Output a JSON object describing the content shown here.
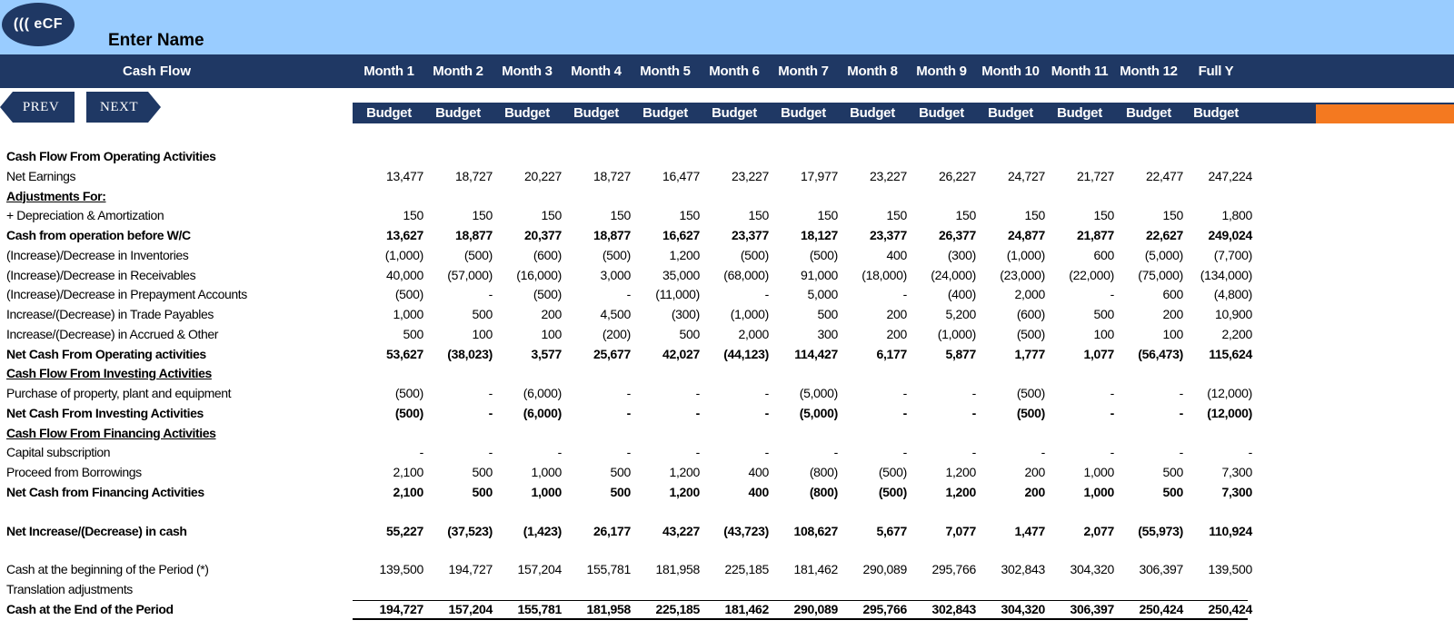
{
  "header": {
    "logo_text": "((( eCF",
    "name": "Enter Name",
    "title": "Cash Flow"
  },
  "nav": {
    "prev": "PREV",
    "next": "NEXT"
  },
  "months": [
    "Month 1",
    "Month 2",
    "Month 3",
    "Month 4",
    "Month 5",
    "Month 6",
    "Month 7",
    "Month 8",
    "Month 9",
    "Month 10",
    "Month 11",
    "Month 12",
    "Full Y"
  ],
  "budget_label": "Budget",
  "colors": {
    "navy": "#1f3864",
    "light_blue": "#99ccff",
    "orange": "#f47920"
  },
  "rows": [
    {
      "label": "Cash Flow From Operating Activities",
      "style": "bold",
      "values": []
    },
    {
      "label": "Net Earnings",
      "style": "normal",
      "values": [
        "13,477",
        "18,727",
        "20,227",
        "18,727",
        "16,477",
        "23,227",
        "17,977",
        "23,227",
        "26,227",
        "24,727",
        "21,727",
        "22,477",
        "247,224"
      ]
    },
    {
      "label": "Adjustments For:",
      "style": "bold-underline",
      "values": []
    },
    {
      "label": "+ Depreciation & Amortization",
      "style": "normal",
      "values": [
        "150",
        "150",
        "150",
        "150",
        "150",
        "150",
        "150",
        "150",
        "150",
        "150",
        "150",
        "150",
        "1,800"
      ]
    },
    {
      "label": "Cash from operation before W/C",
      "style": "bold",
      "values": [
        "13,627",
        "18,877",
        "20,377",
        "18,877",
        "16,627",
        "23,377",
        "18,127",
        "23,377",
        "26,377",
        "24,877",
        "21,877",
        "22,627",
        "249,024"
      ]
    },
    {
      "label": "(Increase)/Decrease in Inventories",
      "style": "normal",
      "values": [
        "(1,000)",
        "(500)",
        "(600)",
        "(500)",
        "1,200",
        "(500)",
        "(500)",
        "400",
        "(300)",
        "(1,000)",
        "600",
        "(5,000)",
        "(7,700)"
      ]
    },
    {
      "label": "(Increase)/Decrease in Receivables",
      "style": "normal",
      "values": [
        "40,000",
        "(57,000)",
        "(16,000)",
        "3,000",
        "35,000",
        "(68,000)",
        "91,000",
        "(18,000)",
        "(24,000)",
        "(23,000)",
        "(22,000)",
        "(75,000)",
        "(134,000)"
      ]
    },
    {
      "label": "(Increase)/Decrease in Prepayment Accounts",
      "style": "normal",
      "values": [
        "(500)",
        "-",
        "(500)",
        "-",
        "(11,000)",
        "-",
        "5,000",
        "-",
        "(400)",
        "2,000",
        "-",
        "600",
        "(4,800)"
      ]
    },
    {
      "label": "Increase/(Decrease) in Trade Payables",
      "style": "normal",
      "values": [
        "1,000",
        "500",
        "200",
        "4,500",
        "(300)",
        "(1,000)",
        "500",
        "200",
        "5,200",
        "(600)",
        "500",
        "200",
        "10,900"
      ]
    },
    {
      "label": "Increase/(Decrease) in Accrued & Other",
      "style": "normal",
      "values": [
        "500",
        "100",
        "100",
        "(200)",
        "500",
        "2,000",
        "300",
        "200",
        "(1,000)",
        "(500)",
        "100",
        "100",
        "2,200"
      ]
    },
    {
      "label": "Net Cash From Operating activities",
      "style": "bold",
      "values": [
        "53,627",
        "(38,023)",
        "3,577",
        "25,677",
        "42,027",
        "(44,123)",
        "114,427",
        "6,177",
        "5,877",
        "1,777",
        "1,077",
        "(56,473)",
        "115,624"
      ]
    },
    {
      "label": "Cash Flow From Investing Activities",
      "style": "bold-underline",
      "values": []
    },
    {
      "label": "Purchase of property, plant and equipment",
      "style": "normal",
      "values": [
        "(500)",
        "-",
        "(6,000)",
        "-",
        "-",
        "-",
        "(5,000)",
        "-",
        "-",
        "(500)",
        "-",
        "-",
        "(12,000)"
      ]
    },
    {
      "label": "Net Cash From Investing Activities",
      "style": "bold",
      "values": [
        "(500)",
        "-",
        "(6,000)",
        "-",
        "-",
        "-",
        "(5,000)",
        "-",
        "-",
        "(500)",
        "-",
        "-",
        "(12,000)"
      ]
    },
    {
      "label": "Cash Flow From Financing Activities",
      "style": "bold-underline",
      "values": []
    },
    {
      "label": "Capital subscription",
      "style": "normal",
      "values": [
        "-",
        "-",
        "-",
        "-",
        "-",
        "-",
        "-",
        "-",
        "-",
        "-",
        "-",
        "-",
        "-"
      ]
    },
    {
      "label": "Proceed from Borrowings",
      "style": "normal",
      "values": [
        "2,100",
        "500",
        "1,000",
        "500",
        "1,200",
        "400",
        "(800)",
        "(500)",
        "1,200",
        "200",
        "1,000",
        "500",
        "7,300"
      ]
    },
    {
      "label": "Net Cash from Financing Activities",
      "style": "bold",
      "values": [
        "2,100",
        "500",
        "1,000",
        "500",
        "1,200",
        "400",
        "(800)",
        "(500)",
        "1,200",
        "200",
        "1,000",
        "500",
        "7,300"
      ]
    },
    {
      "label": "Net Increase/(Decrease) in cash",
      "style": "bold",
      "gap_before": true,
      "values": [
        "55,227",
        "(37,523)",
        "(1,423)",
        "26,177",
        "43,227",
        "(43,723)",
        "108,627",
        "5,677",
        "7,077",
        "1,477",
        "2,077",
        "(55,973)",
        "110,924"
      ]
    },
    {
      "label": "Cash at the beginning of the Period (*)",
      "style": "normal",
      "gap_before": true,
      "values": [
        "139,500",
        "194,727",
        "157,204",
        "155,781",
        "181,958",
        "225,185",
        "181,462",
        "290,089",
        "295,766",
        "302,843",
        "304,320",
        "306,397",
        "139,500"
      ]
    },
    {
      "label": "Translation adjustments",
      "style": "normal",
      "values": []
    },
    {
      "label": "Cash at the End of the Period",
      "style": "bold",
      "values": [
        "194,727",
        "157,204",
        "155,781",
        "181,958",
        "225,185",
        "181,462",
        "290,089",
        "295,766",
        "302,843",
        "304,320",
        "306,397",
        "250,424",
        "250,424"
      ]
    }
  ]
}
